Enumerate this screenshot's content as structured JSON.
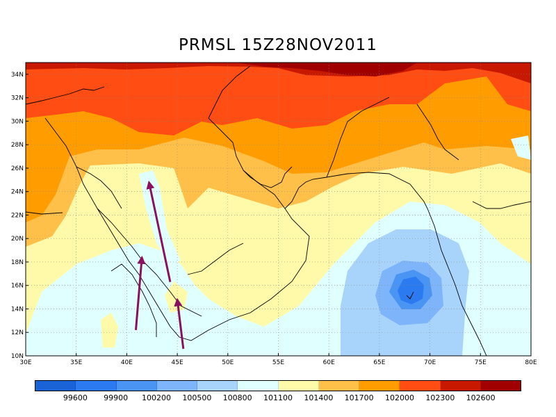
{
  "title": "PRMSL  15Z28NOV2011",
  "map": {
    "lon_range": [
      30,
      80
    ],
    "lat_range": [
      10,
      35
    ],
    "lon_ticks": [
      "30E",
      "35E",
      "40E",
      "45E",
      "50E",
      "55E",
      "60E",
      "65E",
      "70E",
      "75E",
      "80E"
    ],
    "lat_ticks": [
      "10N",
      "12N",
      "14N",
      "16N",
      "18N",
      "20N",
      "22N",
      "24N",
      "26N",
      "28N",
      "30N",
      "32N",
      "34N"
    ],
    "grid": "dotted",
    "arrows": [
      {
        "from": [
          44.3,
          16.3
        ],
        "to": [
          42.2,
          24.8
        ]
      },
      {
        "from": [
          40.9,
          12.2
        ],
        "to": [
          41.5,
          18.4
        ]
      },
      {
        "from": [
          45.6,
          10.6
        ],
        "to": [
          45.0,
          14.8
        ]
      }
    ],
    "arrow_color": "#8a1060"
  },
  "colorbar": {
    "colors": [
      "#1a63d6",
      "#2b7af0",
      "#4a94f4",
      "#7db4fa",
      "#a8d4fc",
      "#e0ffff",
      "#fffaaa",
      "#ffc04a",
      "#ff9c00",
      "#ff4d14",
      "#c81800",
      "#a00000"
    ],
    "labels": [
      "99600",
      "99900",
      "100200",
      "100500",
      "100800",
      "101100",
      "101400",
      "101700",
      "102000",
      "102300",
      "102600"
    ]
  }
}
